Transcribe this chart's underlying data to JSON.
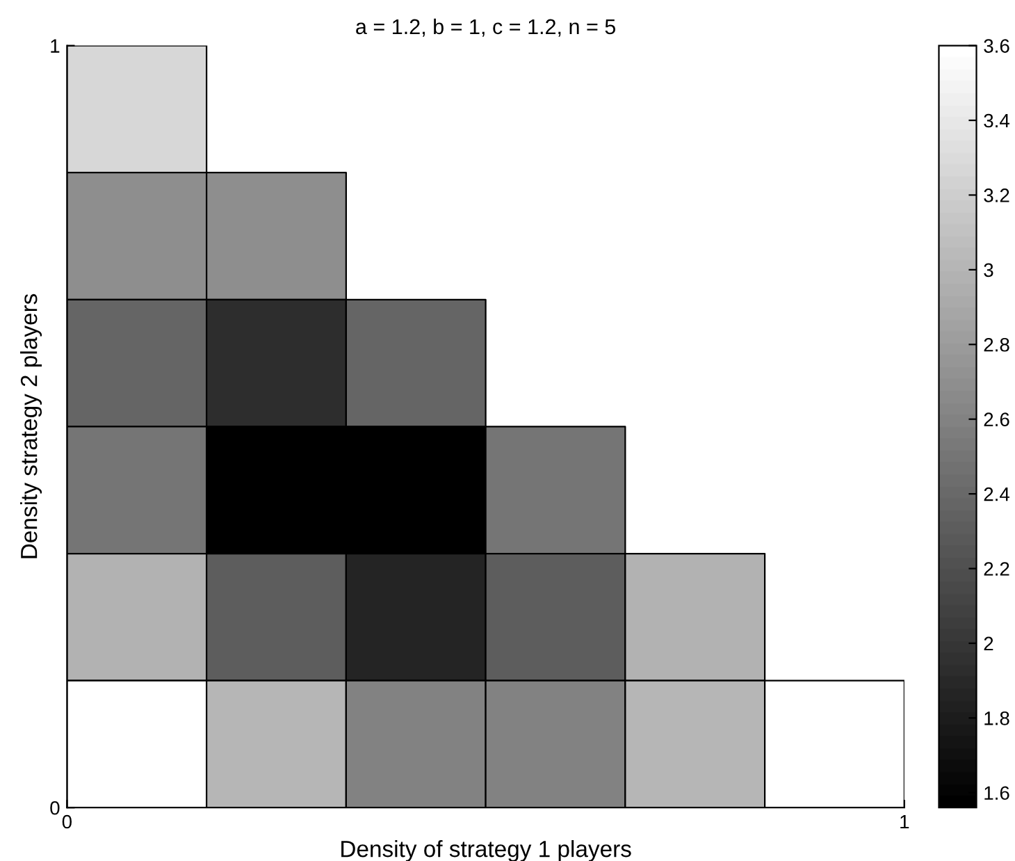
{
  "chart_data": {
    "type": "heatmap",
    "title": "a = 1.2, b = 1, c = 1.2, n = 5",
    "xlabel": "Density of strategy 1 players",
    "ylabel": "Density strategy 2 players",
    "cells": [
      [
        3.26,
        null,
        null,
        null,
        null,
        null
      ],
      [
        2.68,
        2.68,
        null,
        null,
        null,
        null
      ],
      [
        2.36,
        1.94,
        2.36,
        null,
        null,
        null
      ],
      [
        2.5,
        1.56,
        1.56,
        2.5,
        null,
        null
      ],
      [
        2.97,
        2.31,
        1.86,
        2.31,
        2.97,
        null
      ],
      [
        3.6,
        3.0,
        2.58,
        2.58,
        3.0,
        3.6
      ]
    ],
    "xlim": [
      0,
      1
    ],
    "xticks": [
      0,
      1
    ],
    "ylim": [
      0,
      1
    ],
    "yticks": [
      0,
      1
    ],
    "clim": [
      1.56,
      3.6
    ],
    "cticks": [
      1.6,
      1.8,
      2,
      2.2,
      2.4,
      2.6,
      2.8,
      3,
      3.2,
      3.4,
      3.6
    ]
  }
}
